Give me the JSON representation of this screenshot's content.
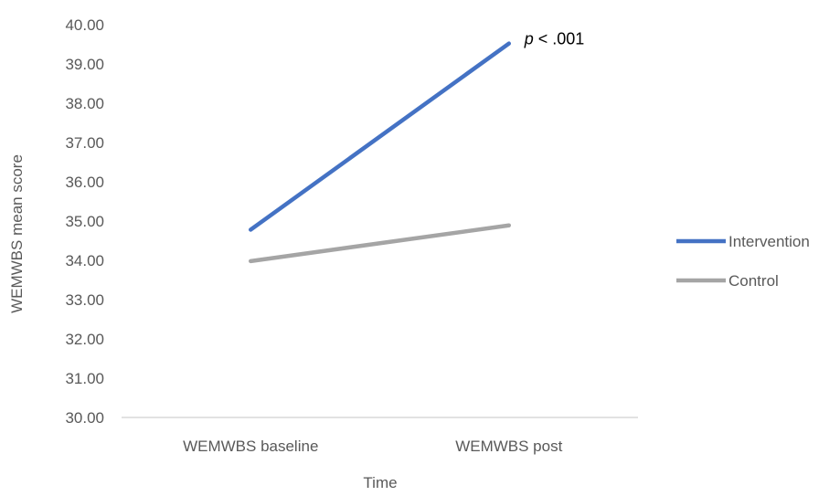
{
  "chart_data": {
    "type": "line",
    "title": "",
    "xlabel": "Time",
    "ylabel": "WEMWBS mean score",
    "categories": [
      "WEMWBS baseline",
      "WEMWBS post"
    ],
    "ylim": [
      30,
      40
    ],
    "yticks": [
      "30.00",
      "31.00",
      "32.00",
      "33.00",
      "34.00",
      "35.00",
      "36.00",
      "37.00",
      "38.00",
      "39.00",
      "40.00"
    ],
    "grid": false,
    "legend_position": "right",
    "series": [
      {
        "name": "Intervention",
        "values": [
          34.78,
          39.52
        ],
        "color": "#4472C4"
      },
      {
        "name": "Control",
        "values": [
          33.98,
          34.89
        ],
        "color": "#A5A5A5"
      }
    ],
    "annotation": {
      "italic_part": "p",
      "rest": " < .001",
      "series_index": 0,
      "category_index": 1
    }
  }
}
